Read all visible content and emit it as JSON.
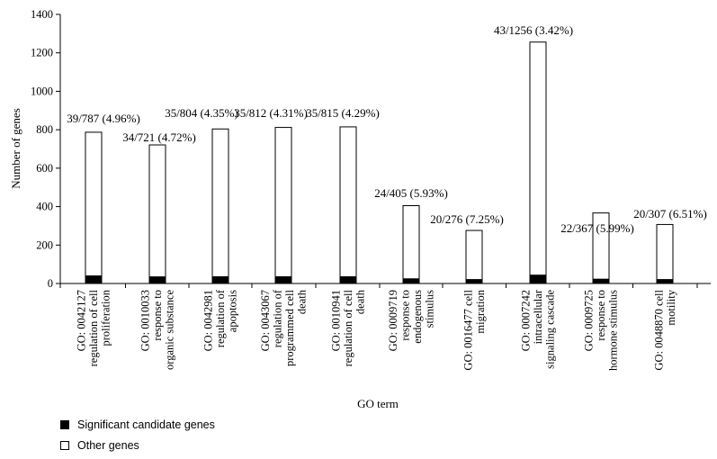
{
  "chart_data": {
    "type": "bar",
    "stacked": true,
    "xlabel": "GO term",
    "ylabel": "Number of genes",
    "ylim": [
      0,
      1400
    ],
    "yticks": [
      0,
      200,
      400,
      600,
      800,
      1000,
      1200,
      1400
    ],
    "categories": [
      [
        "GO: 0042127",
        "regulation of cell",
        "proliferation"
      ],
      [
        "GO: 0010033",
        "response to",
        "organic substance"
      ],
      [
        "GO: 0042981",
        "regulation of",
        "apoptosis"
      ],
      [
        "GO: 0043067",
        "regulation of",
        "programmed cell",
        "death"
      ],
      [
        "GO: 0010941",
        "regulation of cell",
        "death"
      ],
      [
        "GO: 0009719",
        "response to",
        "endogenous",
        "stimulus"
      ],
      [
        "GO: 0016477 cell",
        "migration"
      ],
      [
        "GO: 0007242",
        "intracellular",
        "signaling cascade"
      ],
      [
        "GO: 0009725",
        "response to",
        "hormone stimulus"
      ],
      [
        "GO: 0048870 cell",
        "motility"
      ]
    ],
    "series": [
      {
        "name": "Significant candidate genes",
        "color": "#000000",
        "values": [
          39,
          34,
          35,
          35,
          35,
          24,
          20,
          43,
          22,
          20
        ]
      },
      {
        "name": "Other genes",
        "color": "#ffffff",
        "values": [
          748,
          687,
          769,
          777,
          780,
          381,
          256,
          1213,
          345,
          287
        ]
      }
    ],
    "totals": [
      787,
      721,
      804,
      812,
      815,
      405,
      276,
      1256,
      367,
      307
    ],
    "data_labels": [
      "39/787 (4.96%)",
      "34/721 (4.72%)",
      "35/804 (4.35%)",
      "35/812 (4.31%)",
      "35/815 (4.29%)",
      "24/405 (5.93%)",
      "20/276 (7.25%)",
      "43/1256 (3.42%)",
      "22/367 (5.99%)",
      "20/307 (6.51%)"
    ],
    "legend": {
      "position": "bottom-left",
      "items": [
        {
          "label": "Significant candidate genes",
          "color": "#000000"
        },
        {
          "label": "Other genes",
          "color": "#ffffff"
        }
      ]
    },
    "grid": false
  }
}
